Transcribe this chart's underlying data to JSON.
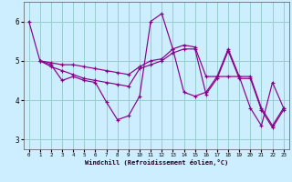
{
  "xlabel": "Windchill (Refroidissement éolien,°C)",
  "background_color": "#cceeff",
  "grid_color": "#99cccc",
  "line_color": "#880088",
  "xlim": [
    -0.5,
    23.5
  ],
  "ylim": [
    2.75,
    6.5
  ],
  "xticks": [
    0,
    1,
    2,
    3,
    4,
    5,
    6,
    7,
    8,
    9,
    10,
    11,
    12,
    13,
    14,
    15,
    16,
    17,
    18,
    19,
    20,
    21,
    22,
    23
  ],
  "yticks": [
    3,
    4,
    5,
    6
  ],
  "lines": [
    {
      "x": [
        0,
        1,
        2,
        3,
        4,
        5,
        6,
        7,
        8,
        9,
        10,
        11,
        12,
        13,
        14,
        15,
        16,
        17,
        18,
        19,
        20,
        21,
        22,
        23
      ],
      "y": [
        6.0,
        5.0,
        4.9,
        4.5,
        4.6,
        4.5,
        4.45,
        3.95,
        3.5,
        3.6,
        4.1,
        6.0,
        6.2,
        5.3,
        4.2,
        4.1,
        4.2,
        4.6,
        4.6,
        4.6,
        3.8,
        3.35,
        4.45,
        3.8
      ]
    },
    {
      "x": [
        1,
        2,
        3,
        4,
        5,
        6,
        7,
        8,
        9,
        10,
        11,
        12,
        13,
        14,
        15,
        16,
        17,
        18,
        19,
        20,
        21,
        22,
        23
      ],
      "y": [
        5.0,
        4.95,
        4.9,
        4.9,
        4.85,
        4.8,
        4.75,
        4.7,
        4.65,
        4.85,
        5.0,
        5.05,
        5.3,
        5.4,
        5.35,
        4.6,
        4.6,
        5.3,
        4.6,
        4.6,
        3.8,
        3.35,
        3.8
      ]
    },
    {
      "x": [
        1,
        2,
        3,
        4,
        5,
        6,
        7,
        8,
        9,
        10,
        11,
        12,
        13,
        14,
        15,
        16,
        17,
        18,
        19,
        20,
        21,
        22,
        23
      ],
      "y": [
        5.0,
        4.85,
        4.75,
        4.65,
        4.55,
        4.5,
        4.45,
        4.4,
        4.35,
        4.8,
        4.9,
        5.0,
        5.2,
        5.3,
        5.3,
        4.15,
        4.55,
        5.25,
        4.55,
        4.55,
        3.75,
        3.3,
        3.75
      ]
    }
  ]
}
